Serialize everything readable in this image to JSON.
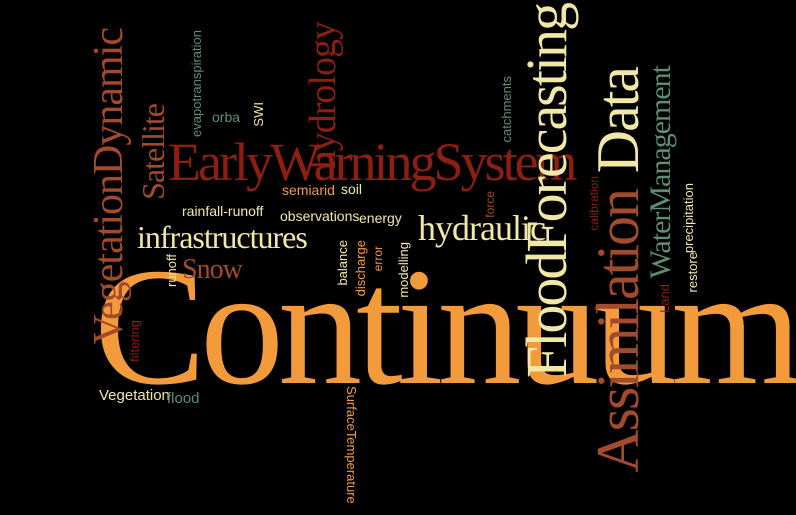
{
  "colors": {
    "orange": "#f39b3b",
    "darkred": "#8e1d12",
    "cream": "#f2e8a6",
    "teal": "#5f8f73",
    "brown": "#a24a2c"
  },
  "words": {
    "continuum": "Continuum",
    "early_warning_system": "EarlyWarningSystem",
    "flood_forecasting": "FloodForecasting",
    "assimilation": "Assimilation",
    "data": "Data",
    "vegetation_dynamic": "VegetationDynamic",
    "hydrology": "hydrology",
    "infrastructures": "infrastructures",
    "hydraulic": "hydraulic",
    "satellite": "Satellite",
    "snow": "Snow",
    "water_management": "WaterManagement",
    "evapotranspiration": "evapotranspiration",
    "orba": "orba",
    "swi": "SWI",
    "catchments": "catchments",
    "semiarid": "semiarid",
    "soil": "soil",
    "rainfall_runoff": "rainfall-runoff",
    "observations": "observations",
    "energy": "energy",
    "force": "force",
    "calibration": "calibration",
    "precipitation": "precipitation",
    "restore": "restore",
    "land": "Land",
    "runoff": "runoff",
    "balance": "balance",
    "discharge": "discharge",
    "error": "error",
    "modelling": "modelling",
    "filtering": "filtering",
    "vegetation": "Vegetation",
    "flood": "flood",
    "surface_temperature": "SurfaceTemperature"
  }
}
